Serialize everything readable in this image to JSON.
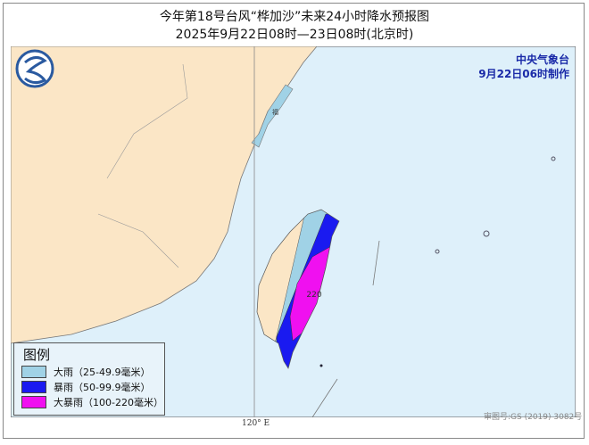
{
  "header": {
    "title": "今年第18号台风“桦加沙”未来24小时降水预报图",
    "subtitle": "2025年9月22日08时—23日08时(北京时)"
  },
  "issuer": {
    "name": "中央气象台",
    "made": "9月22日06时制作"
  },
  "legend": {
    "title": "图例",
    "items": [
      {
        "label": "大雨（25-49.9毫米）",
        "color": "#a0d2e6"
      },
      {
        "label": "暴雨（50-99.9毫米）",
        "color": "#1a1af0"
      },
      {
        "label": "大暴雨（100-220毫米）",
        "color": "#f010f0"
      }
    ]
  },
  "map": {
    "max_label": "220",
    "city_label": "福",
    "lon_label": "120° E",
    "approval": "审图号:GS (2019) 3082号",
    "land_color": "#fbe6c6",
    "sea_color": "#def0fa",
    "logo_icon": "cma-logo-icon"
  }
}
